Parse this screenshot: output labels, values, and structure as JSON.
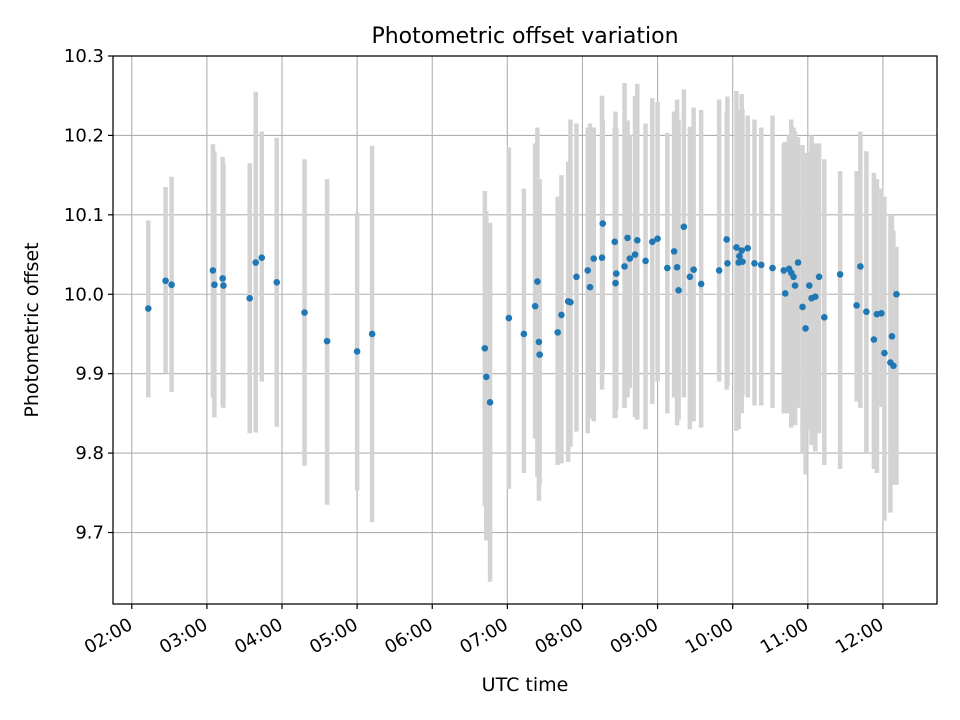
{
  "colors": {
    "point": "#1f77b4",
    "errorbar": "#d3d3d3",
    "grid": "#b0b0b0",
    "axes": "#000000"
  },
  "chart_data": {
    "type": "scatter",
    "title": "Photometric offset variation",
    "xlabel": "UTC time",
    "ylabel": "Photometric offset",
    "xlim": [
      1.75,
      12.72
    ],
    "ylim": [
      9.61,
      10.3
    ],
    "grid": true,
    "x_tick_values": [
      2,
      3,
      4,
      5,
      6,
      7,
      8,
      9,
      10,
      11,
      12
    ],
    "x_tick_labels": [
      "02:00",
      "03:00",
      "04:00",
      "05:00",
      "06:00",
      "07:00",
      "08:00",
      "09:00",
      "10:00",
      "11:00",
      "12:00"
    ],
    "y_tick_values": [
      9.7,
      9.8,
      9.9,
      10.0,
      10.1,
      10.2,
      10.3
    ],
    "y_tick_labels": [
      "9.7",
      "9.8",
      "9.9",
      "10.0",
      "10.1",
      "10.2",
      "10.3"
    ],
    "series": [
      {
        "name": "offset",
        "x_hours": [
          2.22,
          2.45,
          2.53,
          3.08,
          3.1,
          3.21,
          3.22,
          3.57,
          3.65,
          3.73,
          3.93,
          4.3,
          4.6,
          5.0,
          5.2,
          6.7,
          6.72,
          6.77,
          7.02,
          7.22,
          7.37,
          7.4,
          7.42,
          7.43,
          7.67,
          7.72,
          7.81,
          7.84,
          7.92,
          8.07,
          8.1,
          8.15,
          8.26,
          8.27,
          8.43,
          8.44,
          8.45,
          8.56,
          8.6,
          8.63,
          8.7,
          8.73,
          8.84,
          8.93,
          9.0,
          9.13,
          9.22,
          9.26,
          9.28,
          9.35,
          9.43,
          9.48,
          9.58,
          9.82,
          9.92,
          9.93,
          10.05,
          10.08,
          10.09,
          10.12,
          10.13,
          10.2,
          10.29,
          10.38,
          10.53,
          10.68,
          10.7,
          10.75,
          10.78,
          10.81,
          10.83,
          10.87,
          10.93,
          10.97,
          11.02,
          11.05,
          11.1,
          11.15,
          11.22,
          11.43,
          11.65,
          11.7,
          11.78,
          11.88,
          11.92,
          11.98,
          12.02,
          12.1,
          12.12,
          12.14,
          12.18
        ],
        "y": [
          9.982,
          10.017,
          10.012,
          10.03,
          10.012,
          10.02,
          10.011,
          9.995,
          10.04,
          10.046,
          10.015,
          9.977,
          9.941,
          9.928,
          9.95,
          9.932,
          9.896,
          9.864,
          9.97,
          9.95,
          9.985,
          10.016,
          9.94,
          9.924,
          9.952,
          9.974,
          9.991,
          9.99,
          10.022,
          10.03,
          10.009,
          10.045,
          10.046,
          10.089,
          10.066,
          10.014,
          10.026,
          10.035,
          10.071,
          10.045,
          10.05,
          10.068,
          10.042,
          10.066,
          10.07,
          10.033,
          10.054,
          10.034,
          10.005,
          10.085,
          10.022,
          10.031,
          10.013,
          10.03,
          10.069,
          10.039,
          10.059,
          10.04,
          10.048,
          10.055,
          10.041,
          10.058,
          10.039,
          10.037,
          10.033,
          10.03,
          10.001,
          10.032,
          10.027,
          10.022,
          10.011,
          10.04,
          9.984,
          9.957,
          10.011,
          9.995,
          9.997,
          10.022,
          9.971,
          10.025,
          9.986,
          10.035,
          9.978,
          9.943,
          9.975,
          9.976,
          9.926,
          9.914,
          9.947,
          9.91,
          10.0
        ],
        "yerr_low": [
          9.87,
          9.9,
          9.877,
          9.87,
          9.845,
          9.86,
          9.857,
          9.825,
          9.826,
          9.89,
          9.833,
          9.784,
          9.735,
          9.753,
          9.713,
          9.733,
          9.69,
          9.638,
          9.755,
          9.775,
          9.818,
          9.77,
          9.74,
          9.76,
          9.785,
          9.787,
          9.789,
          9.808,
          9.827,
          9.825,
          9.843,
          9.84,
          9.88,
          9.905,
          9.844,
          9.844,
          9.855,
          9.857,
          9.87,
          9.882,
          9.845,
          9.842,
          9.83,
          9.862,
          9.89,
          9.85,
          9.87,
          9.835,
          9.842,
          9.87,
          9.83,
          9.84,
          9.832,
          9.89,
          9.88,
          9.885,
          9.828,
          9.83,
          9.895,
          9.85,
          9.873,
          9.87,
          9.86,
          9.86,
          9.857,
          9.85,
          9.85,
          9.85,
          9.832,
          9.85,
          9.835,
          9.857,
          9.8,
          9.773,
          9.83,
          9.81,
          9.802,
          9.825,
          9.785,
          9.78,
          9.865,
          9.857,
          9.8,
          9.78,
          9.775,
          9.858,
          9.715,
          9.725,
          9.775,
          9.76,
          9.76
        ],
        "yerr_high": [
          10.093,
          10.135,
          10.148,
          10.189,
          10.18,
          10.173,
          10.165,
          10.165,
          10.255,
          10.205,
          10.197,
          10.17,
          10.145,
          10.103,
          10.187,
          10.13,
          10.105,
          10.09,
          10.185,
          10.133,
          10.19,
          10.21,
          10.14,
          10.145,
          10.123,
          10.15,
          10.167,
          10.22,
          10.215,
          10.21,
          10.215,
          10.21,
          10.25,
          10.22,
          10.21,
          10.23,
          10.21,
          10.266,
          10.219,
          10.2,
          10.25,
          10.265,
          10.215,
          10.247,
          10.242,
          10.203,
          10.23,
          10.245,
          10.22,
          10.258,
          10.211,
          10.235,
          10.232,
          10.245,
          10.23,
          10.249,
          10.256,
          10.232,
          10.22,
          10.252,
          10.233,
          10.225,
          10.22,
          10.21,
          10.225,
          10.19,
          10.192,
          10.2,
          10.22,
          10.21,
          10.205,
          10.198,
          10.188,
          10.178,
          10.18,
          10.2,
          10.19,
          10.19,
          10.17,
          10.155,
          10.155,
          10.205,
          10.18,
          10.153,
          10.145,
          10.133,
          10.123,
          10.1,
          10.1,
          10.08,
          10.06
        ]
      }
    ]
  }
}
